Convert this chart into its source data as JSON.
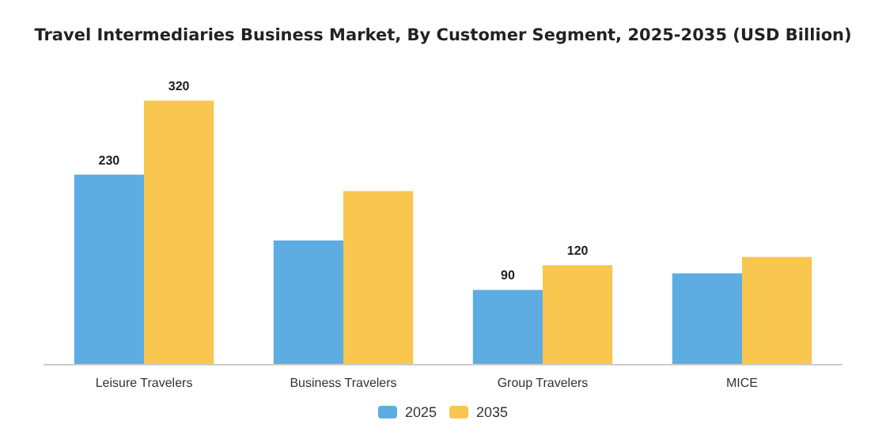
{
  "chart_data": {
    "type": "bar",
    "title": "Travel Intermediaries Business Market, By Customer Segment, 2025-2035 (USD Billion)",
    "categories": [
      "Leisure Travelers",
      "Business Travelers",
      "Group Travelers",
      "MICE"
    ],
    "series": [
      {
        "name": "2025",
        "color": "#5dade2",
        "values": [
          230,
          150,
          90,
          110
        ],
        "value_labels": [
          "230",
          null,
          "90",
          null
        ]
      },
      {
        "name": "2035",
        "color": "#f9c74f",
        "values": [
          320,
          210,
          120,
          130
        ],
        "value_labels": [
          "320",
          null,
          "120",
          null
        ]
      }
    ],
    "tick_labels": "x",
    "legend": "bottom"
  }
}
